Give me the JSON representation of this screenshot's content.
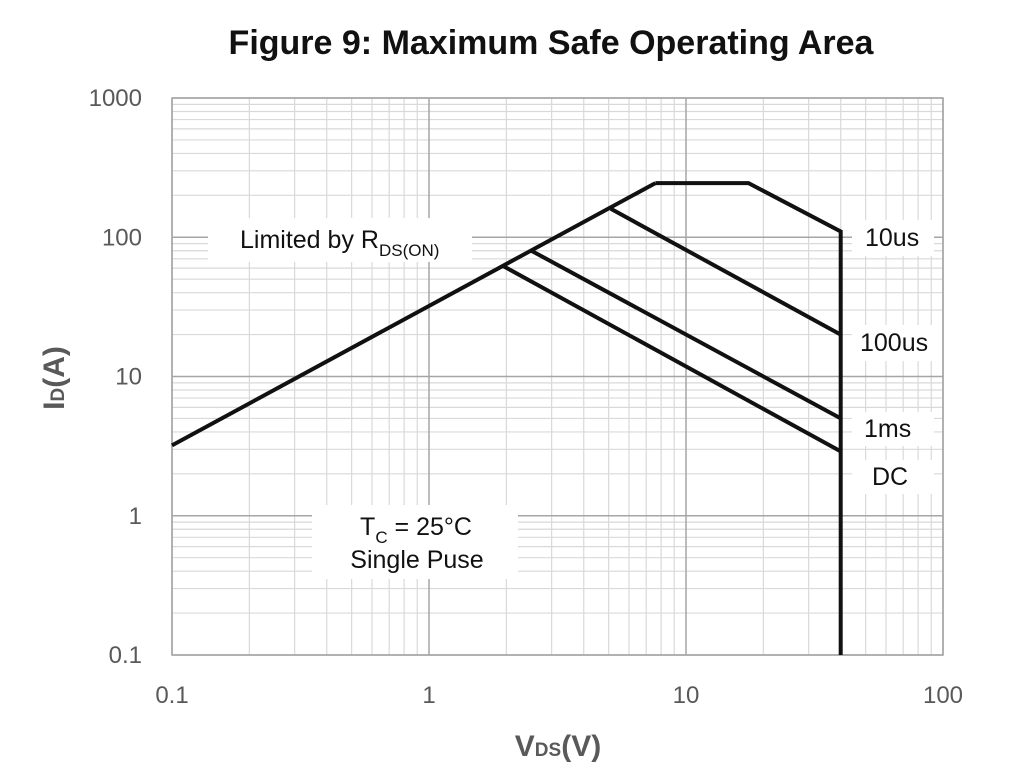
{
  "chart_data": {
    "type": "line",
    "title": "Figure 9: Maximum Safe Operating Area",
    "xscale": "log",
    "yscale": "log",
    "xlim": [
      0.1,
      100
    ],
    "ylim": [
      0.1,
      1000
    ],
    "grid": true,
    "xlabel": {
      "main": "V",
      "sub": "DS",
      "tail": "(V)"
    },
    "ylabel": {
      "main": "I",
      "sub": "D",
      "tail": "(A)"
    },
    "x_ticks": [
      0.1,
      1,
      10,
      100
    ],
    "x_tick_labels": [
      "0.1",
      "1",
      "10",
      "100"
    ],
    "y_ticks": [
      0.1,
      1,
      10,
      100,
      1000
    ],
    "y_tick_labels": [
      "0.1",
      "1",
      "10",
      "100",
      "1000"
    ],
    "series": [
      {
        "name": "Limited by RDS(ON)",
        "x": [
          0.1,
          7.6
        ],
        "y": [
          3.2,
          245
        ]
      },
      {
        "name": "10us",
        "x": [
          7.6,
          17.5,
          40,
          40
        ],
        "y": [
          245,
          245,
          110,
          0.1
        ]
      },
      {
        "name": "100us",
        "x": [
          5.1,
          40
        ],
        "y": [
          160,
          20
        ]
      },
      {
        "name": "1ms",
        "x": [
          2.5,
          40
        ],
        "y": [
          80,
          5
        ]
      },
      {
        "name": "DC",
        "x": [
          1.95,
          40
        ],
        "y": [
          62,
          2.9
        ]
      }
    ],
    "annotations": {
      "rds_limit": {
        "main": "Limited by R",
        "sub": "DS(ON)"
      },
      "conditions": {
        "line1_main": "T",
        "line1_sub": "C",
        "line1_tail": " = 25°C",
        "line2": "Single Puse"
      }
    },
    "series_labels": [
      "10us",
      "100us",
      "1ms",
      "DC"
    ]
  }
}
